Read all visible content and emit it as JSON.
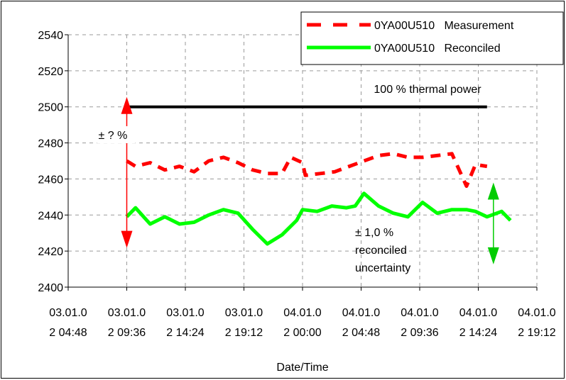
{
  "chart_data": {
    "type": "line",
    "xlabel": "Date/Time",
    "ylabel": "",
    "ylim": [
      2400,
      2540
    ],
    "yticks": [
      2400,
      2420,
      2440,
      2460,
      2480,
      2500,
      2520,
      2540
    ],
    "xtick_labels": [
      [
        "03.01.0",
        "2 04:48"
      ],
      [
        "03.01.0",
        "2 09:36"
      ],
      [
        "03.01.0",
        "2 14:24"
      ],
      [
        "03.01.0",
        "2 19:12"
      ],
      [
        "04.01.0",
        "2 00:00"
      ],
      [
        "04.01.0",
        "2 04:48"
      ],
      [
        "04.01.0",
        "2 09:36"
      ],
      [
        "04.01.0",
        "2 14:24"
      ],
      [
        "04.01.0",
        "2 19:12"
      ]
    ],
    "xlim": [
      "2002-01-03 04:48",
      "2002-01-04 19:12"
    ],
    "grid": true,
    "legend_position": "top-right",
    "series": [
      {
        "name": "0YA00U510   Measurement",
        "color": "#ff0000",
        "style": "dashed",
        "points": [
          [
            "2002-01-03 09:36",
            2470
          ],
          [
            "2002-01-03 10:19",
            2467
          ],
          [
            "2002-01-03 11:31",
            2469
          ],
          [
            "2002-01-03 12:43",
            2465
          ],
          [
            "2002-01-03 13:55",
            2467
          ],
          [
            "2002-01-03 15:07",
            2464
          ],
          [
            "2002-01-03 16:19",
            2470
          ],
          [
            "2002-01-03 17:31",
            2472
          ],
          [
            "2002-01-03 18:43",
            2469
          ],
          [
            "2002-01-03 19:55",
            2465
          ],
          [
            "2002-01-03 21:07",
            2463
          ],
          [
            "2002-01-03 22:19",
            2463
          ],
          [
            "2002-01-03 23:02",
            2472
          ],
          [
            "2002-01-04 00:00",
            2469
          ],
          [
            "2002-01-04 00:14",
            2462
          ],
          [
            "2002-01-04 01:26",
            2463
          ],
          [
            "2002-01-04 02:38",
            2464
          ],
          [
            "2002-01-04 03:50",
            2467
          ],
          [
            "2002-01-04 05:02",
            2470
          ],
          [
            "2002-01-04 06:14",
            2473
          ],
          [
            "2002-01-04 07:26",
            2474
          ],
          [
            "2002-01-04 08:38",
            2472
          ],
          [
            "2002-01-04 09:50",
            2472
          ],
          [
            "2002-01-04 11:02",
            2473
          ],
          [
            "2002-01-04 12:14",
            2474
          ],
          [
            "2002-01-04 13:26",
            2456
          ],
          [
            "2002-01-04 14:10",
            2468
          ],
          [
            "2002-01-04 15:07",
            2467
          ]
        ]
      },
      {
        "name": "0YA00U510   Reconciled",
        "color": "#00ff00",
        "style": "solid",
        "points": [
          [
            "2002-01-03 09:36",
            2439
          ],
          [
            "2002-01-03 10:19",
            2444
          ],
          [
            "2002-01-03 11:31",
            2435
          ],
          [
            "2002-01-03 12:43",
            2439
          ],
          [
            "2002-01-03 13:55",
            2435
          ],
          [
            "2002-01-03 15:07",
            2436
          ],
          [
            "2002-01-03 16:19",
            2440
          ],
          [
            "2002-01-03 17:31",
            2443
          ],
          [
            "2002-01-03 18:43",
            2441
          ],
          [
            "2002-01-03 19:55",
            2432
          ],
          [
            "2002-01-03 21:07",
            2424
          ],
          [
            "2002-01-03 22:19",
            2429
          ],
          [
            "2002-01-03 23:31",
            2437
          ],
          [
            "2002-01-04 00:00",
            2443
          ],
          [
            "2002-01-04 01:12",
            2442
          ],
          [
            "2002-01-04 02:24",
            2445
          ],
          [
            "2002-01-04 03:36",
            2444
          ],
          [
            "2002-01-04 04:19",
            2445
          ],
          [
            "2002-01-04 05:02",
            2452
          ],
          [
            "2002-01-04 06:14",
            2445
          ],
          [
            "2002-01-04 07:26",
            2441
          ],
          [
            "2002-01-04 08:38",
            2439
          ],
          [
            "2002-01-04 09:50",
            2447
          ],
          [
            "2002-01-04 11:02",
            2441
          ],
          [
            "2002-01-04 12:14",
            2443
          ],
          [
            "2002-01-04 13:26",
            2443
          ],
          [
            "2002-01-04 14:10",
            2442
          ],
          [
            "2002-01-04 15:07",
            2439
          ],
          [
            "2002-01-04 16:19",
            2442
          ],
          [
            "2002-01-04 17:02",
            2437
          ]
        ]
      },
      {
        "name": "",
        "color": "#000000",
        "style": "solid",
        "points": [
          [
            "2002-01-03 09:36",
            2500
          ],
          [
            "2002-01-04 15:07",
            2500
          ]
        ]
      }
    ],
    "annotations": {
      "thermal_power": {
        "text": "100 % thermal power"
      },
      "measurement_uncertainty": {
        "text": "± ? %",
        "from": 2500,
        "to": 2432,
        "x": "2002-01-03 09:36",
        "color": "#ff0000"
      },
      "reconciled_uncertainty": {
        "lines": [
          "± 1,0 %",
          "reconciled",
          "uncertainty"
        ],
        "from": 2458,
        "to": 2415,
        "x": "2002-01-04 15:07",
        "color": "#00cc00"
      }
    }
  }
}
